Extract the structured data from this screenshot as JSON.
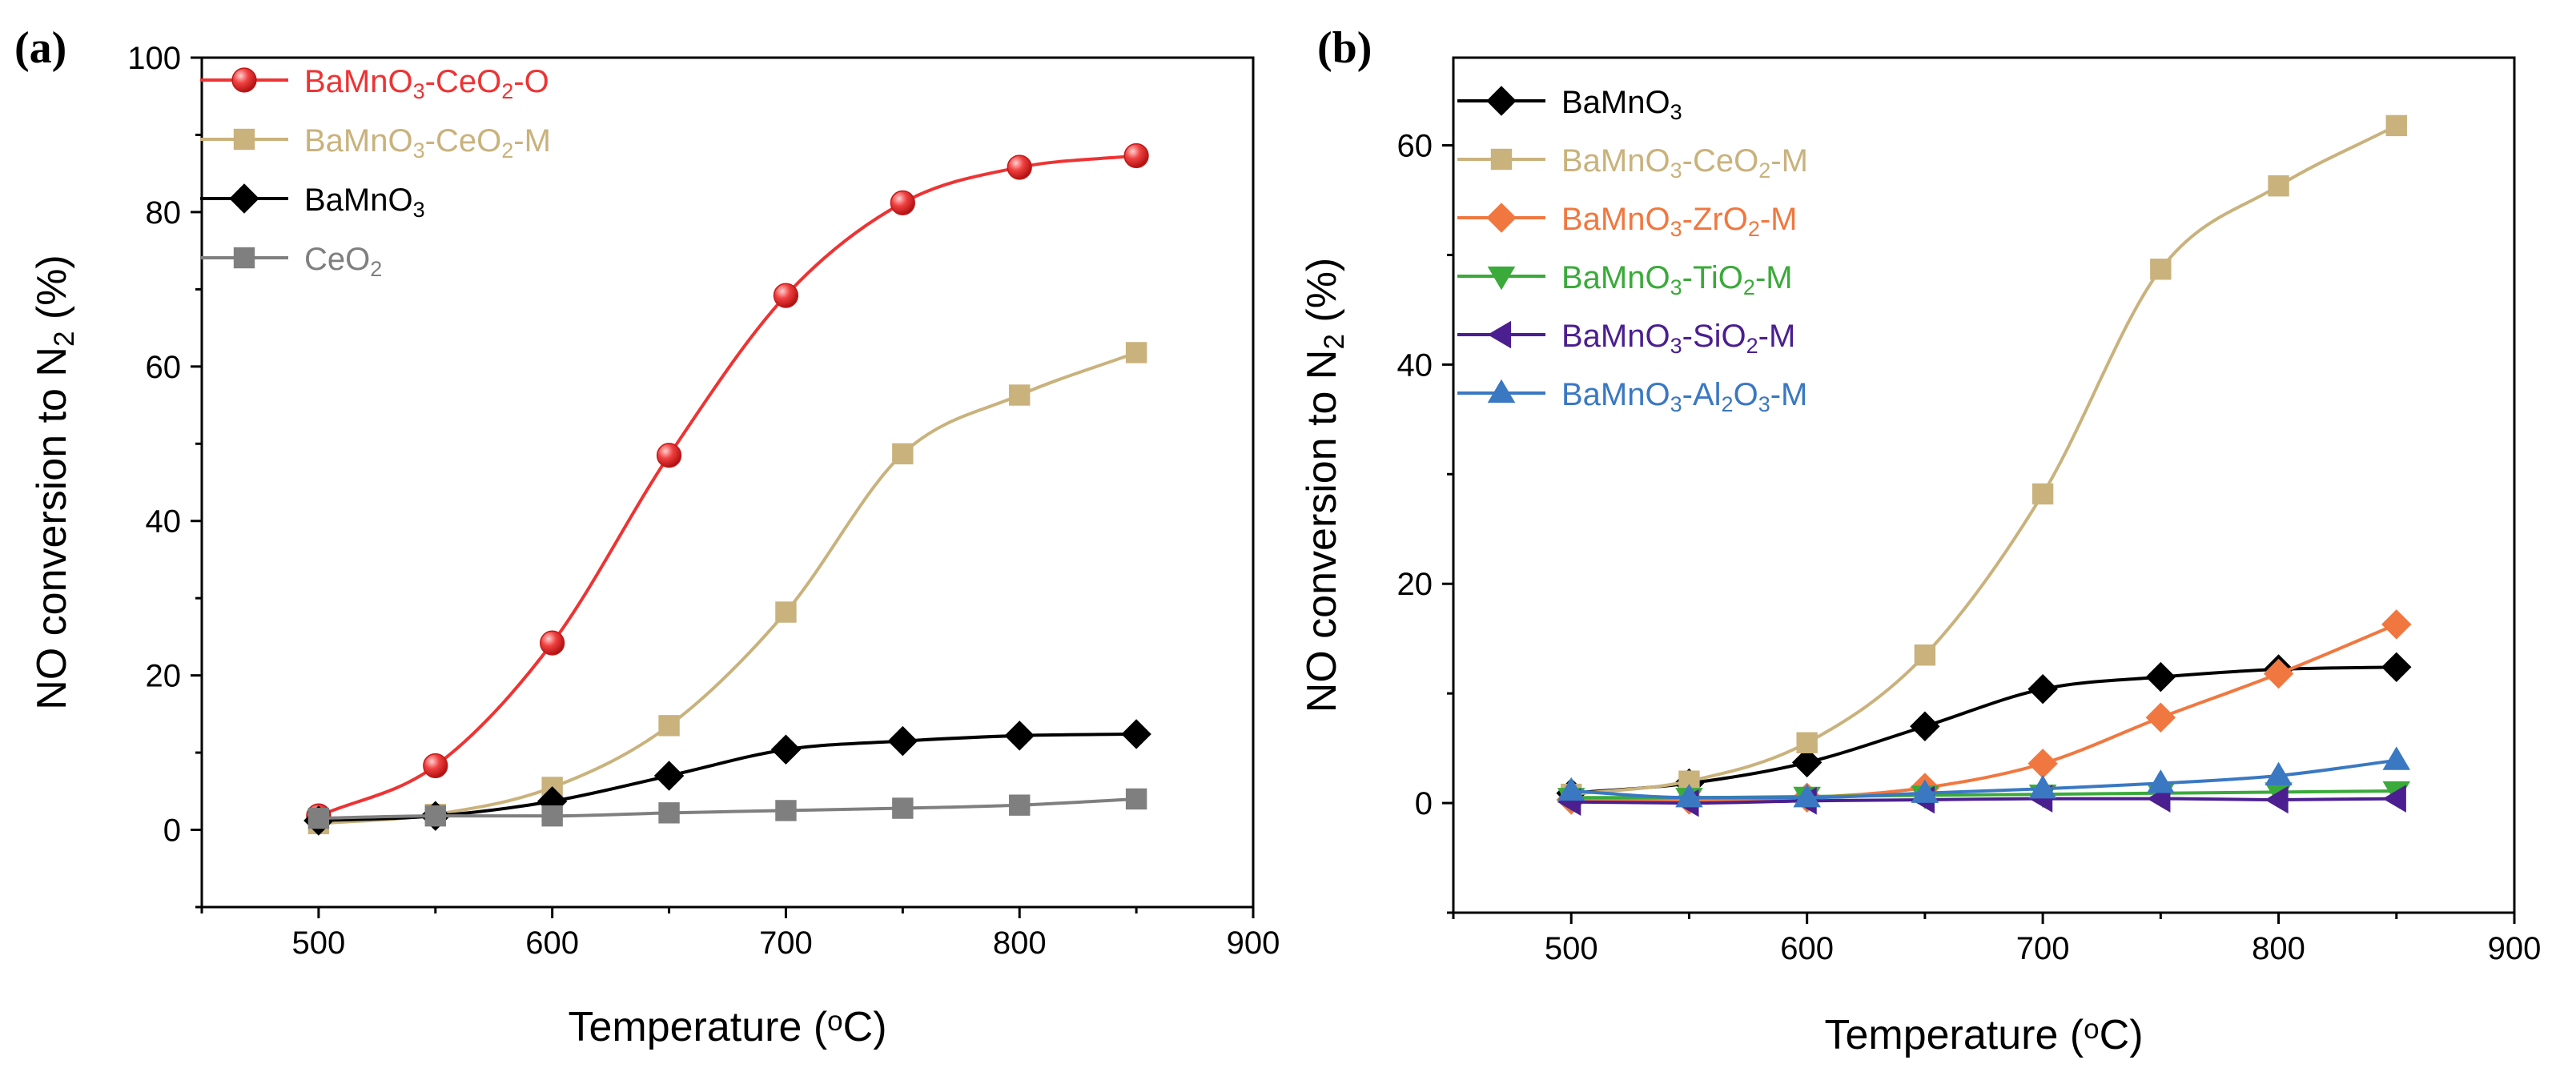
{
  "chart_data": [
    {
      "panel_label": "(a)",
      "type": "line",
      "xlabel": "Temperature (°C)",
      "xlabel_parts": [
        "Temperature (",
        "o",
        "C)"
      ],
      "ylabel": "NO conversion to N2 (%)",
      "ylabel_parts": [
        "NO conversion to N",
        "2",
        " (%)"
      ],
      "xlim": [
        450,
        900
      ],
      "ylim": [
        -10,
        100
      ],
      "xticks": [
        500,
        600,
        700,
        800,
        900
      ],
      "yticks": [
        0,
        20,
        40,
        60,
        80,
        100
      ],
      "legend_position": "top-left",
      "x": [
        500,
        550,
        600,
        650,
        700,
        750,
        800,
        850
      ],
      "series": [
        {
          "name": "BaMnO3-CeO2-O",
          "label_parts": [
            "BaMnO",
            "3",
            "-CeO",
            "2",
            "-O"
          ],
          "color": "#ee3333",
          "marker": "sphere",
          "values": [
            1.8,
            8.3,
            24.2,
            48.5,
            69.2,
            81.2,
            85.8,
            87.3
          ]
        },
        {
          "name": "BaMnO3-CeO2-M",
          "label_parts": [
            "BaMnO",
            "3",
            "-CeO",
            "2",
            "-M"
          ],
          "color": "#c9b27c",
          "marker": "square",
          "values": [
            0.8,
            2.0,
            5.5,
            13.5,
            28.2,
            48.7,
            56.3,
            61.8
          ]
        },
        {
          "name": "BaMnO3",
          "label_parts": [
            "BaMnO",
            "3"
          ],
          "color": "#000000",
          "marker": "diamond",
          "values": [
            1.2,
            1.8,
            3.7,
            7.0,
            10.4,
            11.5,
            12.2,
            12.4
          ]
        },
        {
          "name": "CeO2",
          "label_parts": [
            "CeO",
            "2"
          ],
          "color": "#7f7f7f",
          "marker": "square",
          "values": [
            1.5,
            1.8,
            1.8,
            2.2,
            2.5,
            2.8,
            3.2,
            4.0
          ]
        }
      ]
    },
    {
      "panel_label": "(b)",
      "type": "line",
      "xlabel": "Temperature (°C)",
      "xlabel_parts": [
        "Temperature (",
        "o",
        "C)"
      ],
      "ylabel": "NO conversion to N2 (%)",
      "ylabel_parts": [
        "NO conversion to N",
        "2",
        " (%)"
      ],
      "xlim": [
        450,
        900
      ],
      "ylim": [
        -10,
        68
      ],
      "xticks": [
        500,
        600,
        700,
        800,
        900
      ],
      "yticks": [
        0,
        20,
        40,
        60
      ],
      "legend_position": "top-left",
      "x": [
        500,
        550,
        600,
        650,
        700,
        750,
        800,
        850
      ],
      "series": [
        {
          "name": "BaMnO3",
          "label_parts": [
            "BaMnO",
            "3"
          ],
          "color": "#000000",
          "marker": "diamond",
          "values": [
            0.9,
            1.8,
            3.7,
            7.0,
            10.4,
            11.5,
            12.2,
            12.4
          ]
        },
        {
          "name": "BaMnO3-CeO2-M",
          "label_parts": [
            "BaMnO",
            "3",
            "-CeO",
            "2",
            "-M"
          ],
          "color": "#c9b27c",
          "marker": "square",
          "values": [
            0.8,
            2.0,
            5.5,
            13.5,
            28.2,
            48.7,
            56.3,
            61.8
          ]
        },
        {
          "name": "BaMnO3-ZrO2-M",
          "label_parts": [
            "BaMnO",
            "3",
            "-ZrO",
            "2",
            "-M"
          ],
          "color": "#f07840",
          "marker": "diamond",
          "values": [
            0.3,
            0.3,
            0.5,
            1.4,
            3.6,
            7.8,
            11.8,
            16.3
          ]
        },
        {
          "name": "BaMnO3-TiO2-M",
          "label_parts": [
            "BaMnO",
            "3",
            "-TiO",
            "2",
            "-M"
          ],
          "color": "#3aaa3a",
          "marker": "triangle-down",
          "values": [
            0.5,
            0.5,
            0.6,
            0.7,
            0.8,
            0.9,
            1.0,
            1.1
          ]
        },
        {
          "name": "BaMnO3-SiO2-M",
          "label_parts": [
            "BaMnO",
            "3",
            "-SiO",
            "2",
            "-M"
          ],
          "color": "#4b1f8f",
          "marker": "triangle-left",
          "values": [
            0.1,
            0.0,
            0.2,
            0.3,
            0.4,
            0.4,
            0.3,
            0.4
          ]
        },
        {
          "name": "BaMnO3-Al2O3-M",
          "label_parts": [
            "BaMnO",
            "3",
            "-Al",
            "2",
            "O",
            "3",
            "-M"
          ],
          "color": "#3a78c2",
          "marker": "triangle-up",
          "values": [
            1.1,
            0.5,
            0.5,
            0.9,
            1.3,
            1.8,
            2.5,
            3.9
          ]
        }
      ]
    }
  ]
}
